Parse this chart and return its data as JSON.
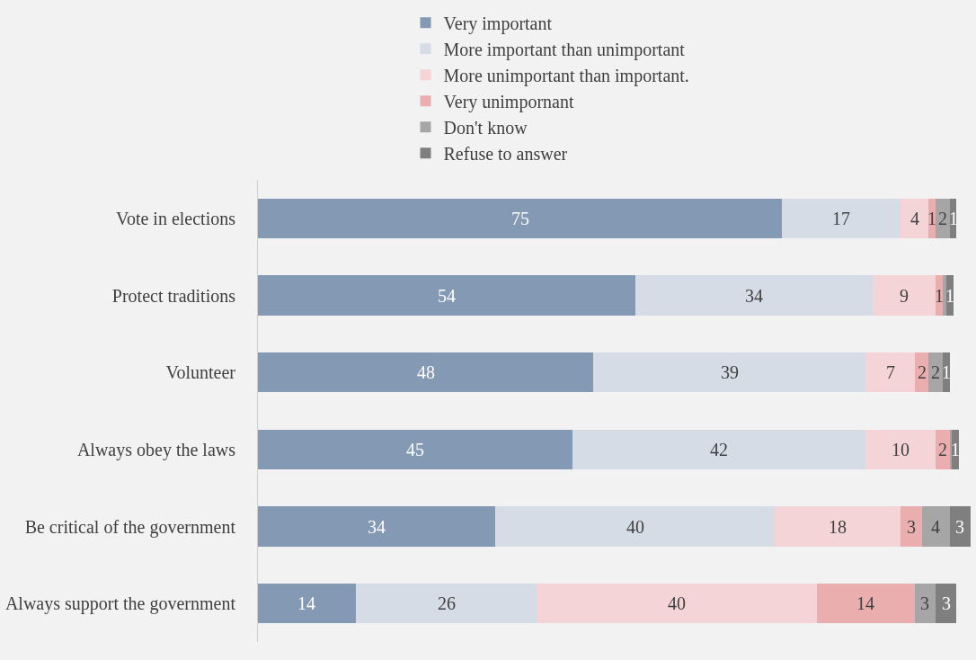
{
  "chart_data": {
    "type": "bar",
    "orientation": "horizontal",
    "stacked": true,
    "legend": "top",
    "tick_labels": "y",
    "xlim": [
      0,
      102
    ],
    "categories": [
      "Vote in elections",
      "Protect traditions",
      "Volunteer",
      "Always obey the laws",
      "Be critical of the government",
      "Always support the government"
    ],
    "series": [
      {
        "name": "Very important",
        "color": "#8499b3",
        "values": [
          75,
          54,
          48,
          45,
          34,
          14
        ],
        "value_labels": [
          "75",
          "54",
          "48",
          "45",
          "34",
          "14"
        ]
      },
      {
        "name": "More important than unimportant",
        "color": "#d5dce6",
        "values": [
          17,
          34,
          39,
          42,
          40,
          26
        ],
        "value_labels": [
          "17",
          "34",
          "39",
          "42",
          "40",
          "26"
        ]
      },
      {
        "name": "More unimportant than important.",
        "color": "#f4d4d6",
        "values": [
          4,
          9,
          7,
          10,
          18,
          40
        ],
        "value_labels": [
          "4",
          "9",
          "7",
          "10",
          "18",
          "40"
        ]
      },
      {
        "name": "Very unimpornant",
        "color": "#ebaeae",
        "values": [
          1,
          1,
          2,
          2,
          3,
          14
        ],
        "value_labels": [
          "1",
          "1",
          "2",
          "2",
          "3",
          "14"
        ]
      },
      {
        "name": "Don't know",
        "color": "#a6a6a6",
        "values": [
          2,
          0.5,
          2,
          0.3,
          4,
          3
        ],
        "value_labels": [
          "2",
          null,
          "2",
          null,
          "4",
          "3"
        ]
      },
      {
        "name": "Refuse to answer",
        "color": "#7f7f7f",
        "values": [
          1,
          1,
          1,
          1,
          3,
          3
        ],
        "value_labels": [
          "1",
          "1",
          "1",
          "1",
          "3",
          "3"
        ]
      }
    ]
  }
}
